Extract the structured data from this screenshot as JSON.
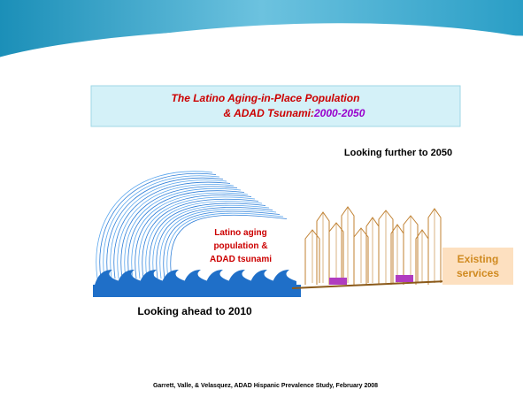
{
  "slide": {
    "title": {
      "line1": "The Latino Aging-in-Place Population",
      "line2_start": "& ADAD Tsunami: ",
      "line2_years": "2000-2050"
    },
    "future_label": "Looking further to 2050",
    "wave_label": [
      "Latino aging",
      "population &",
      "ADAD tsunami"
    ],
    "services_label": [
      "Existing",
      "services"
    ],
    "present_label": "Looking ahead to 2010",
    "citation": "Garrett, Valle, & Velasquez, ADAD Hispanic Prevalence Study, February 2008"
  }
}
